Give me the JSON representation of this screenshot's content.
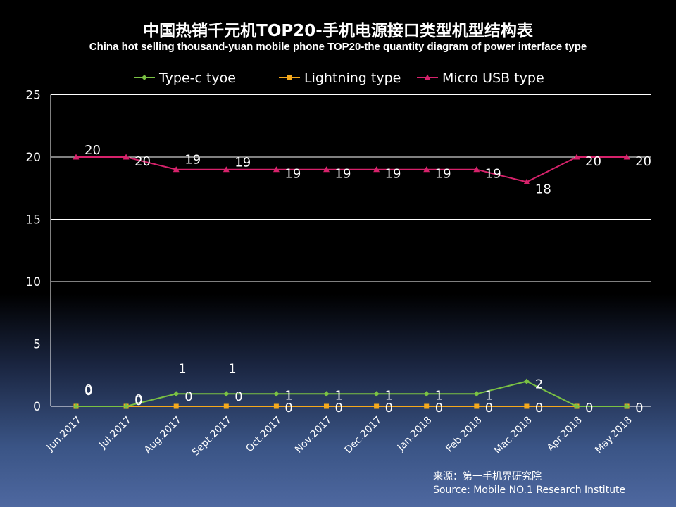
{
  "title": "中国热销千元机TOP20-手机电源接口类型机型结构表",
  "subtitle": "China hot selling thousand-yuan mobile phone TOP20-the quantity diagram of power interface type",
  "source_cn": "来源：第一手机界研究院",
  "source_en": "Source: Mobile NO.1 Research Institute",
  "chart_data": {
    "type": "line",
    "categories": [
      "Jun.2017",
      "Jul.2017",
      "Aug.2017",
      "Sept.2017",
      "Oct.2017",
      "Nov.2017",
      "Dec.2017",
      "Jan.2018",
      "Feb.2018",
      "Mac.2018",
      "Apr.2018",
      "May.2018"
    ],
    "ylim": [
      0,
      25
    ],
    "yticks": [
      0,
      5,
      10,
      15,
      20,
      25
    ],
    "grid": true,
    "legend_position": "top",
    "series": [
      {
        "name": "Type-c tyoe",
        "color": "#7ac143",
        "marker": "diamond",
        "values": [
          0,
          0,
          1,
          1,
          1,
          1,
          1,
          1,
          1,
          2,
          0,
          0
        ]
      },
      {
        "name": "Lightning type",
        "color": "#f5a91c",
        "marker": "square",
        "values": [
          0,
          0,
          0,
          0,
          0,
          0,
          0,
          0,
          0,
          0,
          0,
          0
        ]
      },
      {
        "name": "Micro USB type",
        "color": "#d6226b",
        "marker": "triangle",
        "values": [
          20,
          20,
          19,
          19,
          19,
          19,
          19,
          19,
          19,
          18,
          20,
          20
        ]
      }
    ]
  }
}
